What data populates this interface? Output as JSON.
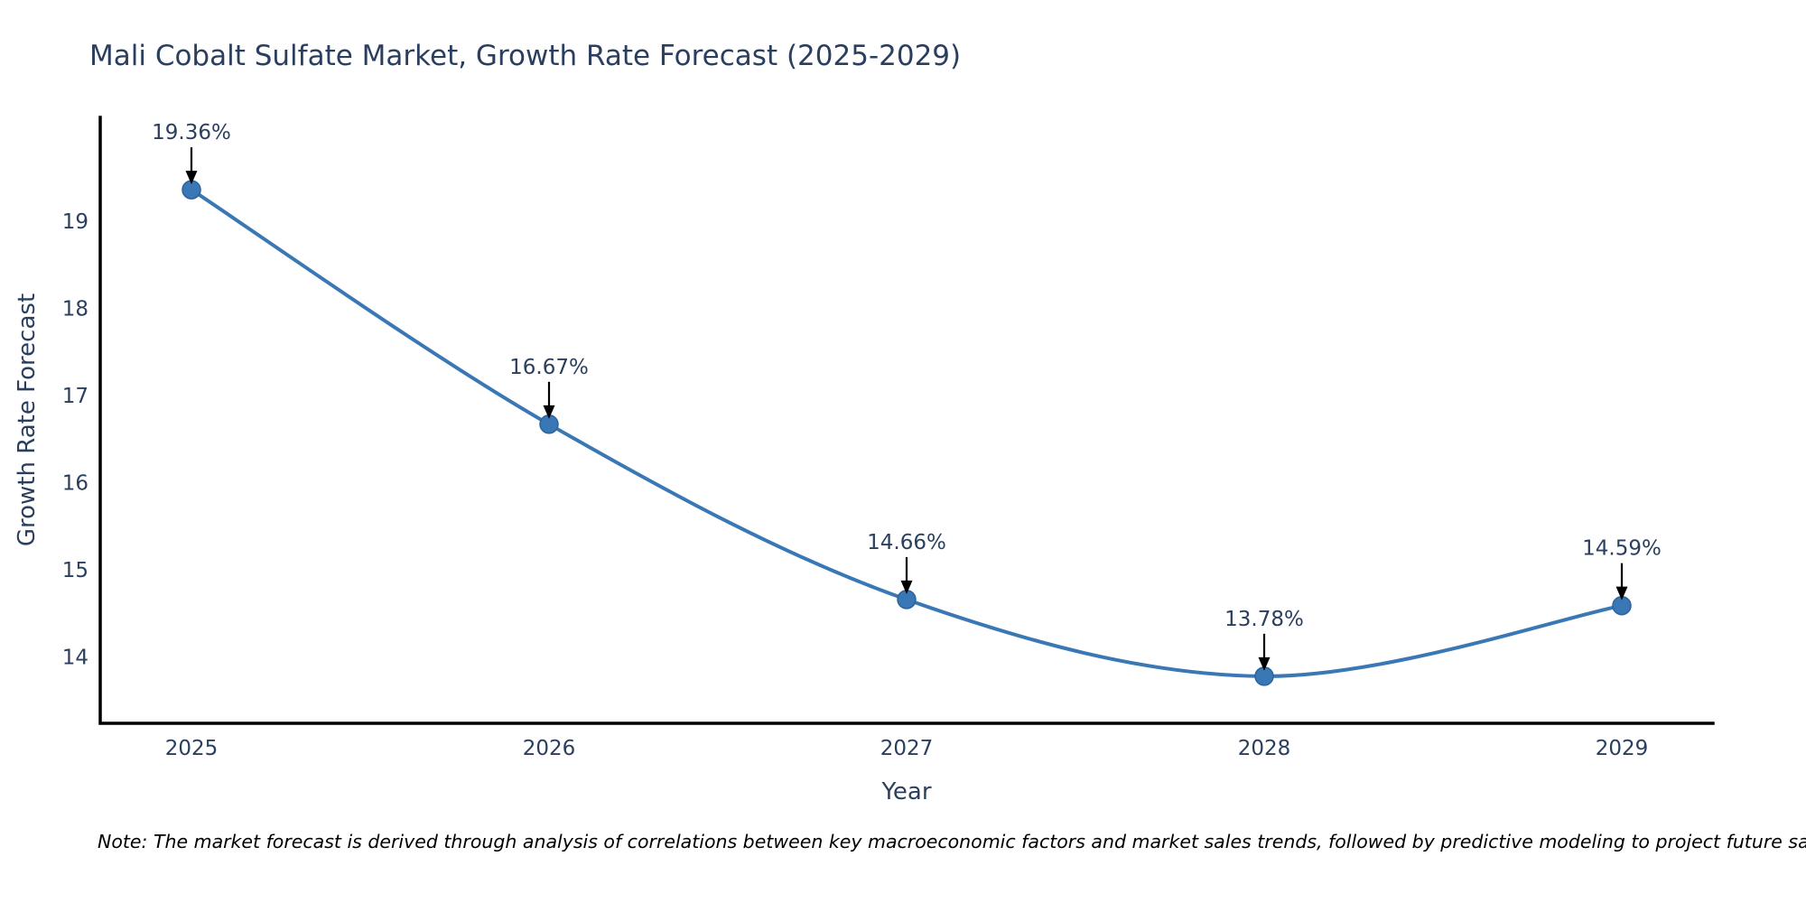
{
  "title": "Mali Cobalt Sulfate Market, Growth Rate Forecast (2025-2029)",
  "note": "Note: The market forecast is derived through analysis of correlations between key macroeconomic factors and market sales trends, followed by predictive modeling to project future sales",
  "chart_data": {
    "type": "line",
    "title": "Mali Cobalt Sulfate Market, Growth Rate Forecast (2025-2029)",
    "xlabel": "Year",
    "ylabel": "Growth Rate Forecast",
    "x": [
      2025,
      2026,
      2027,
      2028,
      2029
    ],
    "values": [
      19.36,
      16.67,
      14.66,
      13.78,
      14.59
    ],
    "point_labels": [
      "19.36%",
      "16.67%",
      "14.66%",
      "13.78%",
      "14.59%"
    ],
    "x_ticks": [
      "2025",
      "2026",
      "2027",
      "2028",
      "2029"
    ],
    "y_ticks": [
      14,
      15,
      16,
      17,
      18,
      19
    ],
    "xlim": [
      2024.745,
      2029.255
    ],
    "ylim": [
      13.24,
      20.19
    ],
    "line_shape": "spline",
    "grid": false,
    "legend": "none",
    "colors": {
      "line": "#3a78b5",
      "marker_fill": "#3a78b5",
      "marker_edge": "#2d639c",
      "axis": "#000000",
      "text": "#2a3f5f",
      "annotation_arrow": "#000000"
    }
  }
}
